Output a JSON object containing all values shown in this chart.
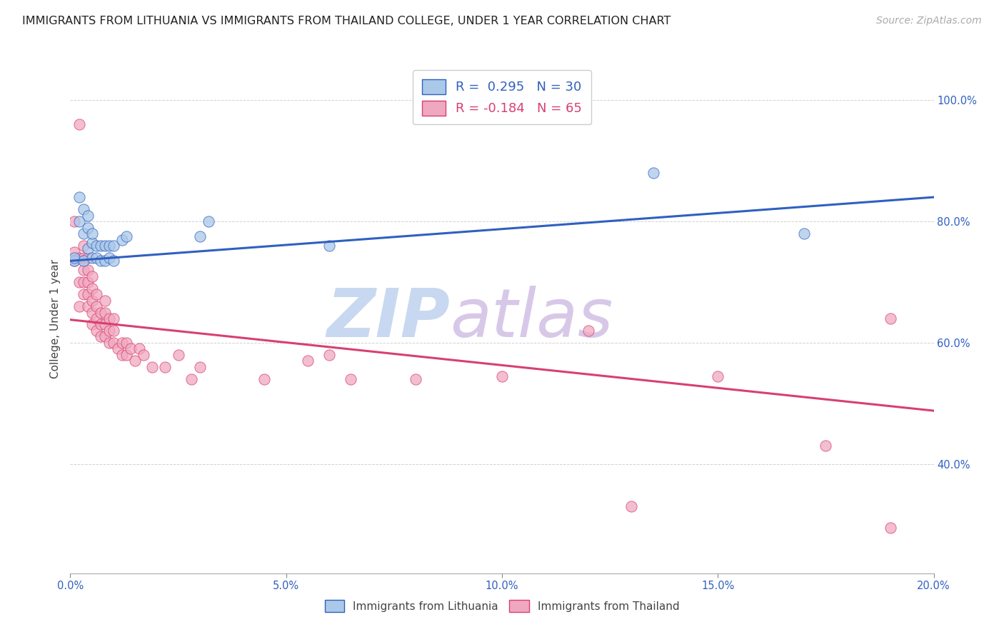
{
  "title": "IMMIGRANTS FROM LITHUANIA VS IMMIGRANTS FROM THAILAND COLLEGE, UNDER 1 YEAR CORRELATION CHART",
  "source": "Source: ZipAtlas.com",
  "ylabel": "College, Under 1 year",
  "xlabel_ticks": [
    "0.0%",
    "5.0%",
    "10.0%",
    "15.0%",
    "20.0%"
  ],
  "ylabel_ticks": [
    "40.0%",
    "60.0%",
    "80.0%",
    "100.0%"
  ],
  "xlim": [
    0.0,
    0.2
  ],
  "ylim": [
    0.22,
    1.06
  ],
  "blue_label": "Immigrants from Lithuania",
  "pink_label": "Immigrants from Thailand",
  "blue_R": 0.295,
  "blue_N": 30,
  "pink_R": -0.184,
  "pink_N": 65,
  "blue_color": "#aac8e8",
  "blue_line_color": "#3060c0",
  "pink_color": "#f0a8c0",
  "pink_line_color": "#d84070",
  "watermark_zip_color": "#c8d8f0",
  "watermark_atlas_color": "#d8c8e8",
  "background_color": "#ffffff",
  "blue_line_x": [
    0.0,
    0.2
  ],
  "blue_line_y": [
    0.735,
    0.84
  ],
  "pink_line_x": [
    0.0,
    0.2
  ],
  "pink_line_y": [
    0.638,
    0.488
  ],
  "blue_scatter_x": [
    0.001,
    0.001,
    0.002,
    0.002,
    0.003,
    0.003,
    0.003,
    0.004,
    0.004,
    0.004,
    0.005,
    0.005,
    0.005,
    0.006,
    0.006,
    0.007,
    0.007,
    0.008,
    0.008,
    0.009,
    0.009,
    0.01,
    0.01,
    0.012,
    0.013,
    0.03,
    0.032,
    0.06,
    0.135,
    0.17
  ],
  "blue_scatter_y": [
    0.735,
    0.74,
    0.8,
    0.84,
    0.735,
    0.78,
    0.82,
    0.755,
    0.79,
    0.81,
    0.74,
    0.765,
    0.78,
    0.74,
    0.76,
    0.735,
    0.76,
    0.735,
    0.76,
    0.74,
    0.76,
    0.735,
    0.76,
    0.77,
    0.775,
    0.775,
    0.8,
    0.76,
    0.88,
    0.78
  ],
  "pink_scatter_x": [
    0.001,
    0.001,
    0.001,
    0.002,
    0.002,
    0.002,
    0.002,
    0.003,
    0.003,
    0.003,
    0.003,
    0.003,
    0.004,
    0.004,
    0.004,
    0.004,
    0.004,
    0.005,
    0.005,
    0.005,
    0.005,
    0.005,
    0.006,
    0.006,
    0.006,
    0.006,
    0.007,
    0.007,
    0.007,
    0.008,
    0.008,
    0.008,
    0.008,
    0.009,
    0.009,
    0.009,
    0.01,
    0.01,
    0.01,
    0.011,
    0.012,
    0.012,
    0.013,
    0.013,
    0.014,
    0.015,
    0.016,
    0.017,
    0.019,
    0.022,
    0.025,
    0.028,
    0.03,
    0.045,
    0.055,
    0.06,
    0.065,
    0.08,
    0.1,
    0.12,
    0.13,
    0.15,
    0.175,
    0.19,
    0.19
  ],
  "pink_scatter_y": [
    0.735,
    0.75,
    0.8,
    0.66,
    0.7,
    0.74,
    0.96,
    0.68,
    0.7,
    0.72,
    0.74,
    0.76,
    0.66,
    0.68,
    0.7,
    0.72,
    0.74,
    0.63,
    0.65,
    0.67,
    0.69,
    0.71,
    0.62,
    0.64,
    0.66,
    0.68,
    0.61,
    0.63,
    0.65,
    0.61,
    0.63,
    0.65,
    0.67,
    0.6,
    0.62,
    0.64,
    0.6,
    0.62,
    0.64,
    0.59,
    0.58,
    0.6,
    0.58,
    0.6,
    0.59,
    0.57,
    0.59,
    0.58,
    0.56,
    0.56,
    0.58,
    0.54,
    0.56,
    0.54,
    0.57,
    0.58,
    0.54,
    0.54,
    0.545,
    0.62,
    0.33,
    0.545,
    0.43,
    0.295,
    0.64
  ],
  "title_fontsize": 11.5,
  "source_fontsize": 10,
  "axis_label_fontsize": 11,
  "tick_fontsize": 10.5,
  "legend_fontsize": 13,
  "scatter_size": 120,
  "line_width": 2.2
}
